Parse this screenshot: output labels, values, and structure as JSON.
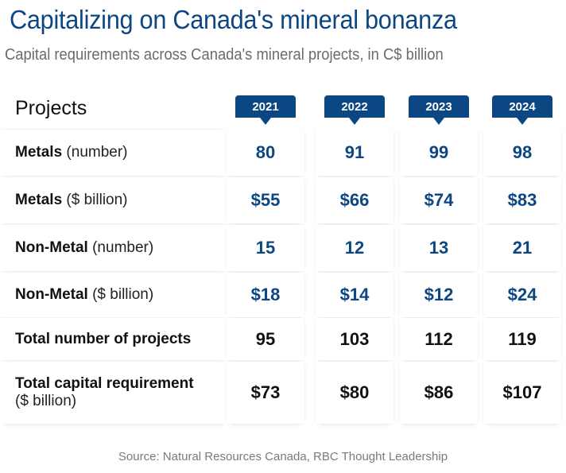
{
  "title": "Capitalizing on Canada's mineral bonanza",
  "subtitle": "Capital requirements across Canada's mineral projects, in C$ billion",
  "source": "Source: Natural Resources Canada, RBC Thought Leadership",
  "colors": {
    "accent": "#0c4783",
    "text": "#111111",
    "muted": "#6b6b6b"
  },
  "chart_data": {
    "type": "table",
    "title": "Capitalizing on Canada's mineral bonanza",
    "subtitle": "Capital requirements across Canada's mineral projects, in C$ billion",
    "row_header": "Projects",
    "columns": [
      "2021",
      "2022",
      "2023",
      "2024"
    ],
    "rows": [
      {
        "label": "Metals",
        "unit": "(number)",
        "style": "blue",
        "values": [
          "80",
          "91",
          "99",
          "98"
        ]
      },
      {
        "label": "Metals",
        "unit": "($ billion)",
        "style": "blue",
        "values": [
          "$55",
          "$66",
          "$74",
          "$83"
        ]
      },
      {
        "label": "Non-Metal",
        "unit": "(number)",
        "style": "blue",
        "values": [
          "15",
          "12",
          "13",
          "21"
        ]
      },
      {
        "label": "Non-Metal",
        "unit": "($ billion)",
        "style": "blue",
        "values": [
          "$18",
          "$14",
          "$12",
          "$24"
        ]
      },
      {
        "label": "Total number of projects",
        "unit": "",
        "style": "black",
        "values": [
          "95",
          "103",
          "112",
          "119"
        ]
      },
      {
        "label": "Total capital requirement",
        "unit": "($ billion)",
        "style": "black",
        "unit_newline": true,
        "values": [
          "$73",
          "$80",
          "$86",
          "$107"
        ]
      }
    ],
    "source": "Source: Natural Resources Canada, RBC Thought Leadership"
  }
}
